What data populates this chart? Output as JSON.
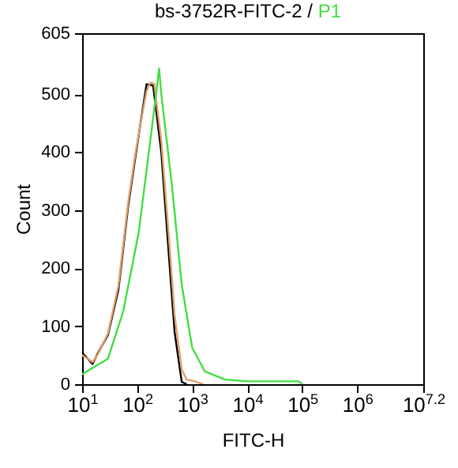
{
  "chart_data": {
    "type": "line",
    "title": "bs-3752R-FITC-2 /",
    "xlabel": "FITC-H",
    "ylabel": "Count",
    "log": "x",
    "grid": false,
    "marker": "none",
    "line_style": "solid",
    "xlim": [
      10,
      15848932
    ],
    "xticks": [
      {
        "value": 10,
        "label": "10$^{1}$"
      },
      {
        "value": 100,
        "label": "10$^{2}$"
      },
      {
        "value": 1000,
        "label": "10$^{3}$"
      },
      {
        "value": 10000,
        "label": "10$^{4}$"
      },
      {
        "value": 100000,
        "label": "10$^{5}$"
      },
      {
        "value": 1000000,
        "label": "10$^{6}$"
      },
      {
        "value": 15848932,
        "label": "10$^{7.2}$"
      }
    ],
    "ylim": [
      0,
      605
    ],
    "yticks": [
      0,
      100,
      200,
      300,
      400,
      500,
      605
    ],
    "series": [
      {
        "color": "#000000",
        "x": [
          10,
          15.5,
          19.5,
          29.5,
          45.7,
          69,
          95.5,
          148,
          195,
          275,
          380,
          479,
          646,
          794
        ],
        "values": [
          54,
          35,
          54,
          85,
          163,
          308,
          399,
          517,
          515,
          399,
          218,
          90,
          4,
          0
        ]
      },
      {
        "color": "#e0a070",
        "x": [
          10,
          15.5,
          19.5,
          29.5,
          45.7,
          69,
          95.5,
          148,
          174,
          204,
          275,
          380,
          479,
          646,
          794,
          1122,
          1585
        ],
        "values": [
          50,
          38,
          52,
          88,
          170,
          315,
          405,
          505,
          520,
          518,
          420,
          250,
          120,
          25,
          8,
          5,
          0
        ]
      },
      {
        "name": "P1",
        "color": "#44dd44",
        "x": [
          10,
          29.5,
          56,
          107,
          182,
          251,
          275,
          427,
          646,
          1000,
          1698,
          3981,
          10000,
          31623,
          87096,
          100000
        ],
        "values": [
          17,
          44,
          126,
          262,
          436,
          544,
          500,
          344,
          172,
          63,
          22,
          8,
          5,
          5,
          5,
          0
        ]
      }
    ]
  }
}
